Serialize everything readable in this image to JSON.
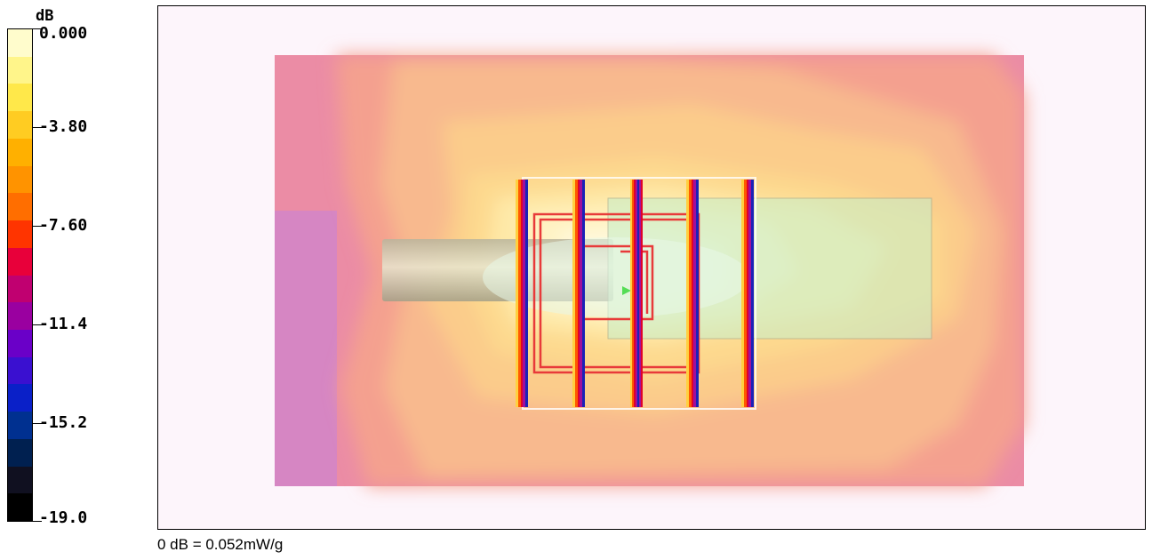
{
  "chart_data": {
    "type": "heatmap",
    "title": "",
    "colorbar": {
      "unit_label": "dB",
      "range": [
        -19.0,
        0.0
      ],
      "tick_labels": [
        "0.000",
        "-3.80",
        "-7.60",
        "-11.4",
        "-15.2",
        "-19.0"
      ],
      "tick_values": [
        0.0,
        -3.8,
        -7.6,
        -11.4,
        -15.2,
        -19.0
      ],
      "colors_top_to_bottom": [
        "#fffccc",
        "#fff58a",
        "#ffe84a",
        "#ffcc22",
        "#ffb000",
        "#ff9300",
        "#ff6e00",
        "#ff3400",
        "#e8003a",
        "#c00070",
        "#9a00a0",
        "#6a00c8",
        "#3a10d0",
        "#0a20c8",
        "#003090",
        "#002050",
        "#101020",
        "#000000"
      ]
    },
    "reference_note": "0 dB = 0.052mW/g"
  }
}
